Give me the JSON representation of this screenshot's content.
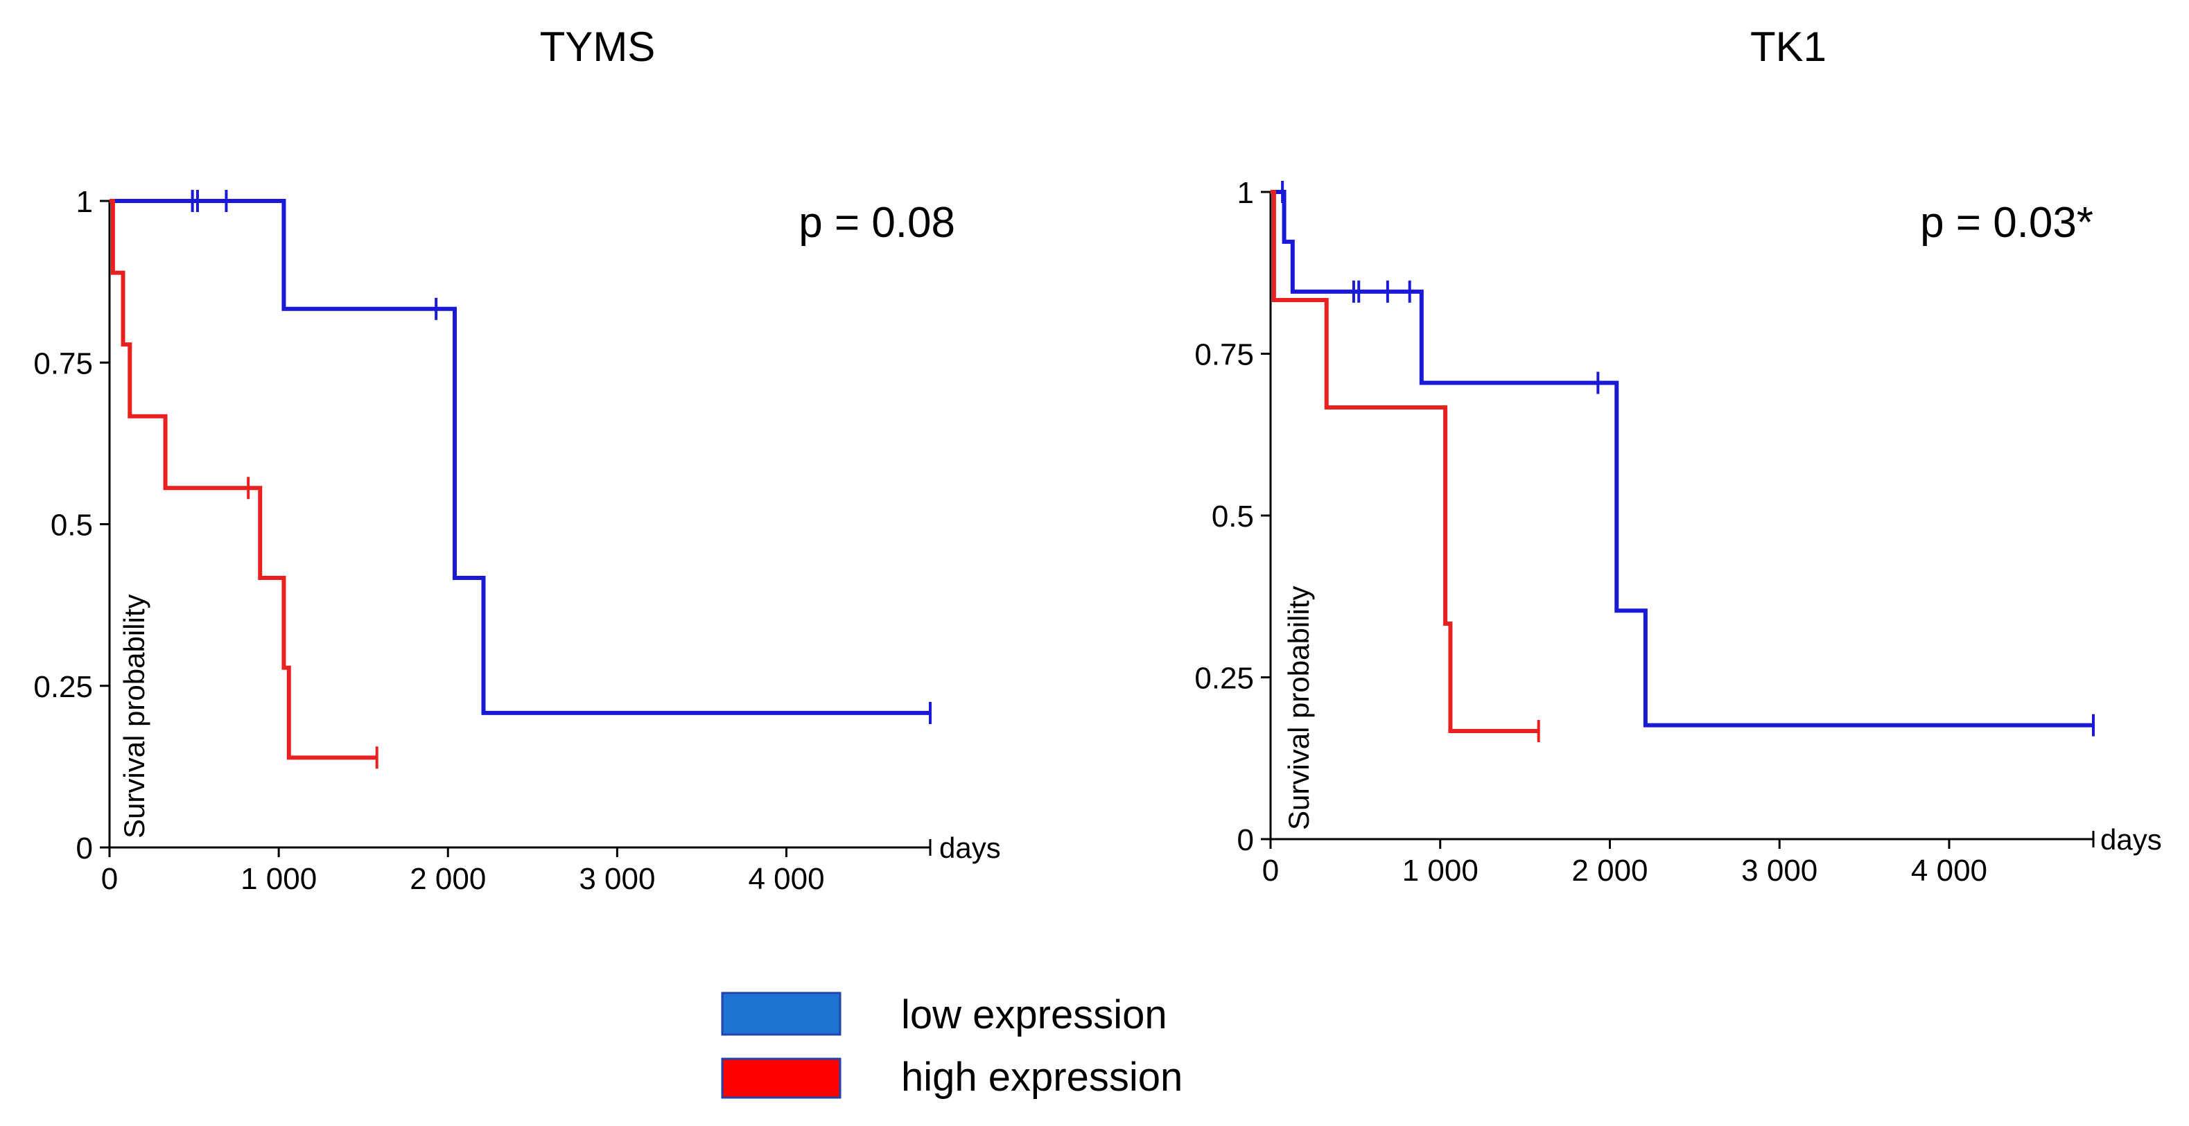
{
  "chart_data": [
    {
      "type": "line",
      "subtype": "kaplan-meier",
      "title": "TYMS",
      "annotation": "p = 0.08",
      "xlabel": "days",
      "ylabel": "Survival probability",
      "xlim": [
        0,
        4850
      ],
      "ylim": [
        0,
        1
      ],
      "xticks": [
        0,
        1000,
        2000,
        3000,
        4000
      ],
      "xtick_labels": [
        "0",
        "1 000",
        "2 000",
        "3 000",
        "4 000"
      ],
      "yticks": [
        0,
        0.25,
        0.5,
        0.75,
        1
      ],
      "ytick_labels": [
        "0",
        "0.25",
        "0.5",
        "0.75",
        "1"
      ],
      "grid": false,
      "series": [
        {
          "name": "low expression",
          "color": "#1a1ad6",
          "steps": [
            [
              0,
              1
            ],
            [
              1030,
              0.833
            ],
            [
              2040,
              0.417
            ],
            [
              2210,
              0.208
            ],
            [
              4850,
              0.208
            ]
          ],
          "censored": [
            [
              490,
              1
            ],
            [
              520,
              1
            ],
            [
              690,
              1
            ],
            [
              1930,
              0.833
            ],
            [
              4850,
              0.208
            ]
          ]
        },
        {
          "name": "high expression",
          "color": "#e82020",
          "steps": [
            [
              0,
              1
            ],
            [
              20,
              0.889
            ],
            [
              80,
              0.778
            ],
            [
              120,
              0.667
            ],
            [
              330,
              0.556
            ],
            [
              890,
              0.417
            ],
            [
              1030,
              0.278
            ],
            [
              1060,
              0.139
            ],
            [
              1580,
              0.139
            ]
          ],
          "censored": [
            [
              820,
              0.556
            ],
            [
              1580,
              0.139
            ]
          ]
        }
      ]
    },
    {
      "type": "line",
      "subtype": "kaplan-meier",
      "title": "TK1",
      "annotation": "p = 0.03*",
      "xlabel": "days",
      "ylabel": "Survival probability",
      "xlim": [
        0,
        4850
      ],
      "ylim": [
        0,
        1
      ],
      "xticks": [
        0,
        1000,
        2000,
        3000,
        4000
      ],
      "xtick_labels": [
        "0",
        "1 000",
        "2 000",
        "3 000",
        "4 000"
      ],
      "yticks": [
        0,
        0.25,
        0.5,
        0.75,
        1
      ],
      "ytick_labels": [
        "0",
        "0.25",
        "0.5",
        "0.75",
        "1"
      ],
      "grid": false,
      "series": [
        {
          "name": "low expression",
          "color": "#1a1ad6",
          "steps": [
            [
              0,
              1
            ],
            [
              80,
              0.923
            ],
            [
              130,
              0.846
            ],
            [
              890,
              0.705
            ],
            [
              2040,
              0.353
            ],
            [
              2210,
              0.176
            ],
            [
              4850,
              0.176
            ]
          ],
          "censored": [
            [
              70,
              1
            ],
            [
              490,
              0.846
            ],
            [
              520,
              0.846
            ],
            [
              690,
              0.846
            ],
            [
              820,
              0.846
            ],
            [
              1930,
              0.705
            ],
            [
              4850,
              0.176
            ]
          ]
        },
        {
          "name": "high expression",
          "color": "#e82020",
          "steps": [
            [
              0,
              1
            ],
            [
              20,
              0.833
            ],
            [
              330,
              0.667
            ],
            [
              1030,
              0.333
            ],
            [
              1060,
              0.167
            ],
            [
              1580,
              0.167
            ]
          ],
          "censored": [
            [
              1580,
              0.167
            ]
          ]
        }
      ]
    }
  ],
  "legend": {
    "placement": "bottom-center",
    "items": [
      {
        "label": "low expression",
        "color": "#1e73d2"
      },
      {
        "label": "high expression",
        "color": "#ff0000"
      }
    ]
  }
}
